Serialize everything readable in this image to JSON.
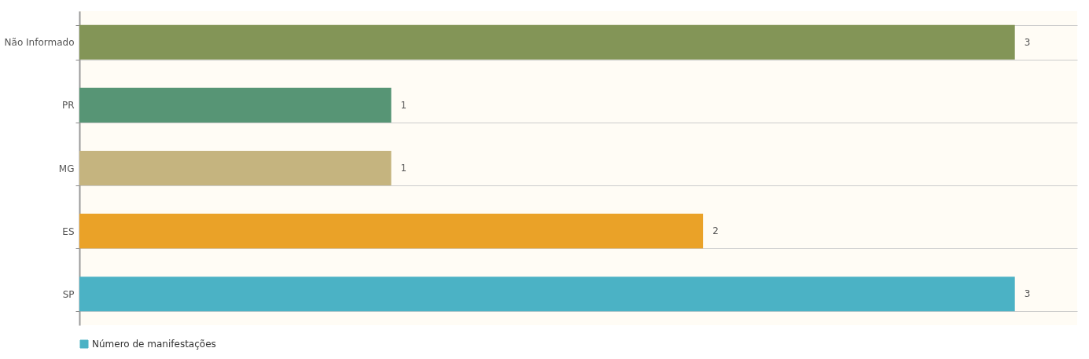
{
  "chart_data": {
    "type": "bar",
    "orientation": "horizontal",
    "categories": [
      "Não Informado",
      "PR",
      "MG",
      "ES",
      "SP"
    ],
    "series": [
      {
        "name": "Número de manifestações",
        "color": "#4bb2c5",
        "colors": [
          "#839557",
          "#579575",
          "#c5b47f",
          "#eaa228",
          "#4bb2c5"
        ],
        "values": [
          3,
          1,
          1,
          2,
          3
        ]
      }
    ],
    "xlim": [
      0,
      3.2
    ],
    "tick_labels": "y",
    "data_labels": true,
    "grid": "y",
    "legend": "bottom"
  }
}
